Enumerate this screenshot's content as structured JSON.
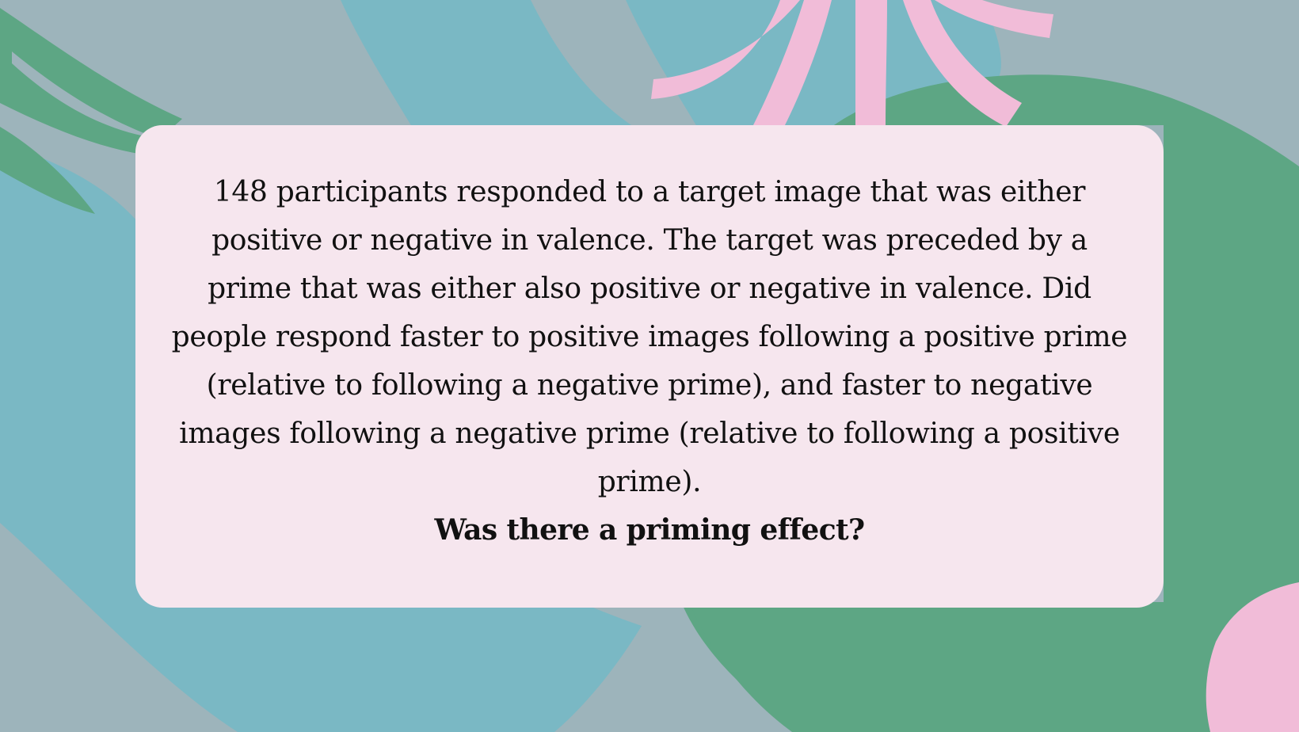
{
  "colors": {
    "background": "#9db4bb",
    "blue_shape": "#7ab8c4",
    "green_shape": "#5da684",
    "pink_shape": "#f1bcd8",
    "card": "#f6e6ee",
    "text": "#111111"
  },
  "slide": {
    "paragraph": "148 participants responded to a target image that was either positive or negative in valence. The target was preceded by a prime that was either also positive or negative in valence. Did people respond faster to positive images following a positive prime (relative to following a negative prime), and faster to negative images following a negative prime (relative to following a positive prime).",
    "question": "Was there a priming effect?"
  }
}
